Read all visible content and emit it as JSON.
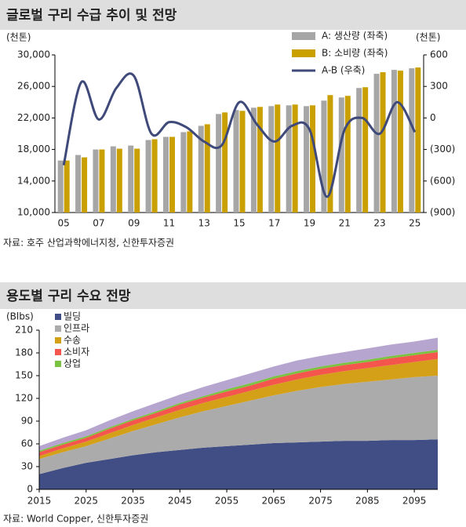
{
  "chart_data": [
    {
      "type": "bar",
      "title": "글로벌 구리 수급 추이 및 전망",
      "source": "자료: 호주 산업과학에너지청, 신한투자증권",
      "y_unit_label": "(천톤)",
      "y2_unit_label": "(천톤)",
      "categories": [
        "05",
        null,
        "07",
        null,
        "09",
        null,
        "11",
        null,
        "13",
        null,
        "15",
        null,
        "17",
        null,
        "19",
        null,
        "21",
        null,
        "23",
        null,
        "25"
      ],
      "series": [
        {
          "name": "A: 생산량 (좌축)",
          "color": "#a6a6a6",
          "values": [
            16600,
            17300,
            18000,
            18400,
            18500,
            19200,
            19600,
            20200,
            21000,
            22500,
            23000,
            23300,
            23500,
            23600,
            23500,
            24200,
            24600,
            25800,
            27600,
            28100,
            28300
          ]
        },
        {
          "name": "B: 소비량 (좌축)",
          "color": "#c9a000",
          "values": [
            16600,
            17000,
            18000,
            18100,
            18100,
            19300,
            19600,
            20300,
            21200,
            22700,
            22900,
            23400,
            23700,
            23700,
            23600,
            24900,
            24800,
            25900,
            27800,
            28000,
            28400
          ]
        },
        {
          "name": "A-B (우축)",
          "color": "#3f4a7a",
          "type": "line",
          "axis": "y2",
          "values": [
            -450,
            340,
            -15,
            285,
            400,
            -150,
            -40,
            -90,
            -225,
            -260,
            150,
            -60,
            -225,
            -75,
            -110,
            -750,
            -110,
            0,
            -150,
            150,
            -135
          ]
        }
      ],
      "ylim": [
        10000,
        30000
      ],
      "yticks": [
        {
          "value": 10000,
          "label": "10,000"
        },
        {
          "value": 14000,
          "label": "14,000"
        },
        {
          "value": 18000,
          "label": "18,000"
        },
        {
          "value": 22000,
          "label": "22,000"
        },
        {
          "value": 26000,
          "label": "26,000"
        },
        {
          "value": 30000,
          "label": "30,000"
        }
      ],
      "y2lim": [
        -900,
        600
      ],
      "y2ticks": [
        {
          "value": -900,
          "label": "(900)"
        },
        {
          "value": -600,
          "label": "(600)"
        },
        {
          "value": -300,
          "label": "(300)"
        },
        0,
        300,
        600
      ]
    },
    {
      "type": "area",
      "stacked": true,
      "title": "용도별 구리 수요 전망",
      "source": "자료: World Copper, 신한투자증권",
      "y_unit_label": "(Blbs)",
      "x": [
        2015,
        2020,
        2025,
        2030,
        2035,
        2040,
        2045,
        2050,
        2055,
        2060,
        2065,
        2070,
        2075,
        2080,
        2085,
        2090,
        2095,
        2100
      ],
      "series": [
        {
          "name": "빌딩",
          "color": "#414d85",
          "values": [
            20,
            28,
            35,
            40,
            45,
            49,
            52,
            55,
            57,
            59,
            61,
            62,
            63,
            64,
            64,
            65,
            65,
            66
          ]
        },
        {
          "name": "인프라",
          "color": "#ababab",
          "values": [
            20,
            21,
            22,
            27,
            32,
            37,
            43,
            48,
            53,
            58,
            63,
            68,
            72,
            75,
            78,
            80,
            83,
            84
          ]
        },
        {
          "name": "수송",
          "color": "#d4a017",
          "values": [
            4,
            5,
            6,
            7,
            8,
            9,
            10,
            11,
            12,
            13,
            14,
            15,
            16,
            17,
            18,
            19,
            20,
            22
          ]
        },
        {
          "name": "소비자",
          "color": "#f4564e",
          "values": [
            5,
            5,
            5,
            6,
            6,
            6,
            7,
            7,
            7,
            7,
            8,
            8,
            8,
            8,
            8,
            9,
            9,
            9
          ]
        },
        {
          "name": "상업",
          "color": "#7cc242",
          "values": [
            2,
            2,
            2,
            2,
            2,
            2,
            2,
            2,
            3,
            3,
            3,
            3,
            3,
            3,
            3,
            3,
            3,
            3
          ]
        },
        {
          "color": "#b6a6cf",
          "values": [
            6,
            7,
            8,
            9,
            10,
            11,
            11,
            12,
            12,
            13,
            13,
            14,
            14,
            14,
            15,
            15,
            15,
            16
          ]
        }
      ],
      "xlim": [
        2015,
        2100
      ],
      "ylim": [
        0,
        210
      ],
      "xticks": [
        2015,
        2025,
        2035,
        2045,
        2055,
        2065,
        2075,
        2085,
        2095
      ],
      "yticks": [
        0,
        30,
        60,
        90,
        120,
        150,
        180,
        210
      ]
    }
  ]
}
